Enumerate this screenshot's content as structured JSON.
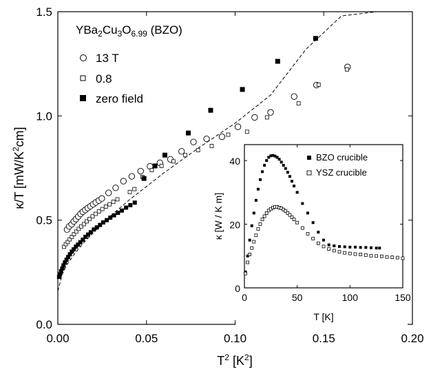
{
  "chart_data": [
    {
      "type": "scatter",
      "title": "YBa2Cu3O6.99 (BZO)",
      "title_parts": {
        "a": "YBa",
        "s1": "2",
        "b": "Cu",
        "s2": "3",
        "c": "O",
        "s3": "6.99",
        "d": " (BZO)"
      },
      "xlabel": "T² [K²]",
      "xlabel_parts": {
        "a": "T",
        "sup": "2",
        "b": " [K",
        "sup2": "2",
        "c": "]"
      },
      "ylabel": "κ/T [mW/K²cm]",
      "ylabel_parts": {
        "a": "κ/T [mW/K",
        "sup": "2",
        "b": "cm]"
      },
      "xlim": [
        0,
        0.2
      ],
      "ylim": [
        0,
        1.5
      ],
      "xticks": [
        "0.00",
        "0.05",
        "0.10",
        "0.15",
        "0.20"
      ],
      "xtick_values": [
        0,
        0.05,
        0.1,
        0.15,
        0.2
      ],
      "yticks": [
        "0.0",
        "0.5",
        "1.0",
        "1.5"
      ],
      "ytick_values": [
        0,
        0.5,
        1.0,
        1.5
      ],
      "legend_position": "top-left",
      "series": [
        {
          "name": "13 T",
          "marker": "open-circle",
          "x": [
            0.0052,
            0.0064,
            0.0078,
            0.009,
            0.0102,
            0.0115,
            0.0128,
            0.0141,
            0.0155,
            0.0169,
            0.0184,
            0.0199,
            0.0214,
            0.0231,
            0.0248,
            0.0286,
            0.0326,
            0.037,
            0.0417,
            0.0467,
            0.052,
            0.0576,
            0.0635,
            0.0698,
            0.0765,
            0.0839,
            0.0926,
            0.1016,
            0.111,
            0.12,
            0.1333,
            0.1459,
            0.1634
          ],
          "y": [
            0.455,
            0.47,
            0.48,
            0.494,
            0.505,
            0.517,
            0.53,
            0.54,
            0.549,
            0.558,
            0.567,
            0.576,
            0.585,
            0.594,
            0.604,
            0.631,
            0.655,
            0.687,
            0.71,
            0.735,
            0.758,
            0.775,
            0.792,
            0.83,
            0.875,
            0.89,
            0.9,
            0.948,
            0.993,
            1.017,
            1.093,
            1.148,
            1.235
          ]
        },
        {
          "name": "0.8",
          "marker": "open-square",
          "x": [
            0.0035,
            0.0045,
            0.0056,
            0.0067,
            0.0079,
            0.0091,
            0.0104,
            0.0118,
            0.0132,
            0.0147,
            0.0163,
            0.0179,
            0.0196,
            0.0213,
            0.0232,
            0.0251,
            0.0271,
            0.0292,
            0.0313,
            0.0336,
            0.0406,
            0.0432,
            0.0477,
            0.053,
            0.0585,
            0.0652,
            0.0719,
            0.0791,
            0.0868,
            0.0961,
            0.1067,
            0.118,
            0.1358,
            0.1471,
            0.1631
          ],
          "y": [
            0.372,
            0.385,
            0.395,
            0.408,
            0.42,
            0.433,
            0.445,
            0.458,
            0.47,
            0.481,
            0.494,
            0.506,
            0.518,
            0.53,
            0.542,
            0.553,
            0.565,
            0.576,
            0.588,
            0.6,
            0.635,
            0.649,
            0.707,
            0.74,
            0.76,
            0.782,
            0.812,
            0.836,
            0.856,
            0.91,
            0.924,
            0.993,
            1.06,
            1.15,
            1.223
          ]
        },
        {
          "name": "zero field",
          "marker": "filled-square",
          "x": [
            0.0007,
            0.0012,
            0.0018,
            0.0025,
            0.0032,
            0.004,
            0.0049,
            0.0058,
            0.0068,
            0.0079,
            0.009,
            0.0102,
            0.0114,
            0.0127,
            0.0141,
            0.0156,
            0.0171,
            0.0186,
            0.0203,
            0.022,
            0.0238,
            0.0256,
            0.0276,
            0.0296,
            0.0317,
            0.0339,
            0.0361,
            0.0385,
            0.0409,
            0.0434,
            0.0486,
            0.0548,
            0.0604,
            0.0736,
            0.0862,
            0.1041,
            0.124,
            0.1454
          ],
          "y": [
            0.228,
            0.24,
            0.255,
            0.268,
            0.283,
            0.297,
            0.31,
            0.323,
            0.336,
            0.349,
            0.36,
            0.373,
            0.383,
            0.394,
            0.406,
            0.42,
            0.431,
            0.442,
            0.455,
            0.465,
            0.477,
            0.489,
            0.5,
            0.512,
            0.523,
            0.535,
            0.546,
            0.56,
            0.572,
            0.584,
            0.7,
            0.76,
            0.812,
            0.918,
            1.027,
            1.127,
            1.262,
            1.372
          ]
        }
      ],
      "fit_curve": {
        "style": "dashed",
        "x": [
          0,
          0.0025,
          0.005,
          0.01,
          0.015,
          0.02,
          0.03,
          0.04,
          0.06,
          0.08,
          0.1,
          0.12,
          0.14,
          0.16,
          0.18
        ],
        "y": [
          0.16,
          0.24,
          0.285,
          0.345,
          0.395,
          0.44,
          0.522,
          0.595,
          0.728,
          0.85,
          0.965,
          1.1,
          1.32,
          1.48,
          1.62
        ]
      }
    },
    {
      "type": "scatter",
      "title": "",
      "xlabel": "T [K]",
      "ylabel": "κ [W / K m]",
      "xlim": [
        0,
        150
      ],
      "ylim": [
        0,
        45
      ],
      "xticks": [
        "0",
        "50",
        "100",
        "150"
      ],
      "xtick_values": [
        0,
        50,
        100,
        150
      ],
      "yticks": [
        "0",
        "20",
        "40"
      ],
      "ytick_values": [
        0,
        20,
        40
      ],
      "legend_position": "top-right",
      "series": [
        {
          "name": "BZO crucible",
          "marker": "filled-square",
          "x": [
            1,
            3,
            5,
            7,
            9,
            11,
            13,
            15,
            17,
            19,
            21,
            23,
            25,
            27,
            29,
            31,
            33,
            35,
            37,
            39,
            41,
            43,
            45,
            47,
            50,
            55,
            60,
            65,
            70,
            75,
            80,
            85,
            90,
            95,
            100,
            105,
            110,
            115,
            120,
            125,
            128
          ],
          "y": [
            5,
            10,
            15,
            19.5,
            23.5,
            27.5,
            31,
            34,
            36.5,
            38.5,
            40,
            41,
            41.5,
            41.6,
            41.4,
            41,
            40.4,
            39.5,
            38.5,
            37.5,
            36.3,
            35,
            33.5,
            32,
            30,
            26.5,
            23.5,
            20.5,
            17.5,
            15,
            13.5,
            13.2,
            13,
            12.9,
            12.8,
            12.8,
            12.7,
            12.7,
            12.6,
            12.5,
            12.5
          ]
        },
        {
          "name": "YSZ crucible",
          "marker": "open-square",
          "x": [
            1,
            3,
            5,
            7,
            9,
            11,
            13,
            15,
            17,
            19,
            21,
            23,
            25,
            27,
            29,
            31,
            33,
            35,
            37,
            39,
            41,
            43,
            45,
            47,
            50,
            55,
            60,
            65,
            70,
            75,
            80,
            85,
            90,
            95,
            100,
            105,
            110,
            115,
            120,
            125,
            130,
            135,
            140,
            145,
            150
          ],
          "y": [
            4.5,
            8,
            10.5,
            12.5,
            14.5,
            16.5,
            18.5,
            20,
            21.5,
            22.5,
            23.5,
            24.3,
            24.8,
            25.2,
            25.4,
            25.4,
            25.2,
            25,
            24.6,
            24.1,
            23.5,
            22.9,
            22.2,
            21.5,
            20.5,
            18.8,
            17,
            15.5,
            14,
            13,
            12.2,
            11.7,
            11.3,
            11,
            10.8,
            10.6,
            10.5,
            10.3,
            10.1,
            10,
            9.9,
            9.7,
            9.6,
            9.5,
            9.3
          ]
        }
      ]
    }
  ]
}
